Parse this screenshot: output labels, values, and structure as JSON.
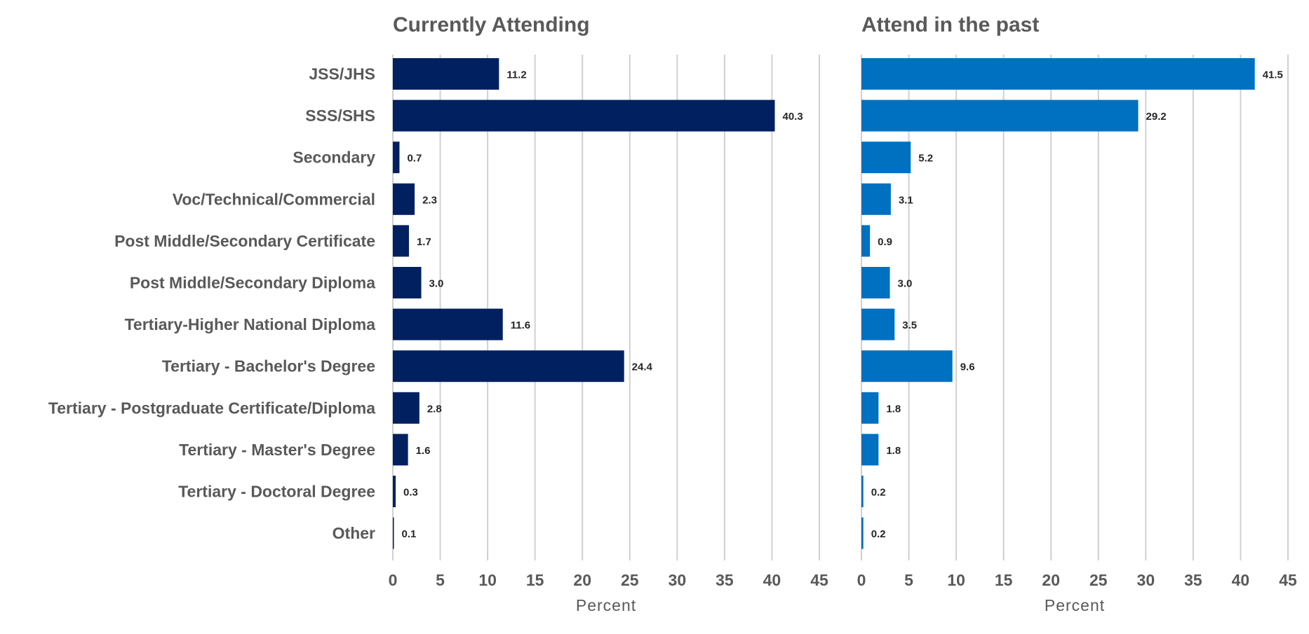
{
  "chart_data": [
    {
      "type": "bar",
      "orientation": "horizontal",
      "title": "Currently Attending",
      "xlabel": "Percent",
      "ylabel": "",
      "xlim": [
        0,
        45
      ],
      "ticks": [
        0,
        5,
        10,
        15,
        20,
        25,
        30,
        35,
        40,
        45
      ],
      "grid": true,
      "color": "#002060",
      "categories": [
        "JSS/JHS",
        "SSS/SHS",
        "Secondary",
        "Voc/Technical/Commercial",
        "Post Middle/Secondary Certificate",
        "Post Middle/Secondary Diploma",
        "Tertiary-Higher National Diploma",
        "Tertiary - Bachelor's Degree",
        "Tertiary - Postgraduate Certificate/Diploma",
        "Tertiary - Master's Degree",
        "Tertiary - Doctoral Degree",
        "Other"
      ],
      "values": [
        11.2,
        40.3,
        0.7,
        2.3,
        1.7,
        3.0,
        11.6,
        24.4,
        2.8,
        1.6,
        0.3,
        0.1
      ],
      "value_labels": [
        "11.2",
        "40.3",
        "0.7",
        "2.3",
        "1.7",
        "3.0",
        "11.6",
        "24.4",
        "2.8",
        "1.6",
        "0.3",
        "0.1"
      ]
    },
    {
      "type": "bar",
      "orientation": "horizontal",
      "title": "Attend in the past",
      "xlabel": "Percent",
      "ylabel": "",
      "xlim": [
        0,
        45
      ],
      "ticks": [
        0,
        5,
        10,
        15,
        20,
        25,
        30,
        35,
        40,
        45
      ],
      "grid": true,
      "color": "#0070C0",
      "categories": [
        "JSS/JHS",
        "SSS/SHS",
        "Secondary",
        "Voc/Technical/Commercial",
        "Post Middle/Secondary Certificate",
        "Post Middle/Secondary Diploma",
        "Tertiary-Higher National Diploma",
        "Tertiary - Bachelor's Degree",
        "Tertiary - Postgraduate Certificate/Diploma",
        "Tertiary - Master's Degree",
        "Tertiary - Doctoral Degree",
        "Other"
      ],
      "values": [
        41.5,
        29.2,
        5.2,
        3.1,
        0.9,
        3.0,
        3.5,
        9.6,
        1.8,
        1.8,
        0.2,
        0.2
      ],
      "value_labels": [
        "41.5",
        "29.2",
        "5.2",
        "3.1",
        "0.9",
        "3.0",
        "3.5",
        "9.6",
        "1.8",
        "1.8",
        "0.2",
        "0.2"
      ]
    }
  ]
}
